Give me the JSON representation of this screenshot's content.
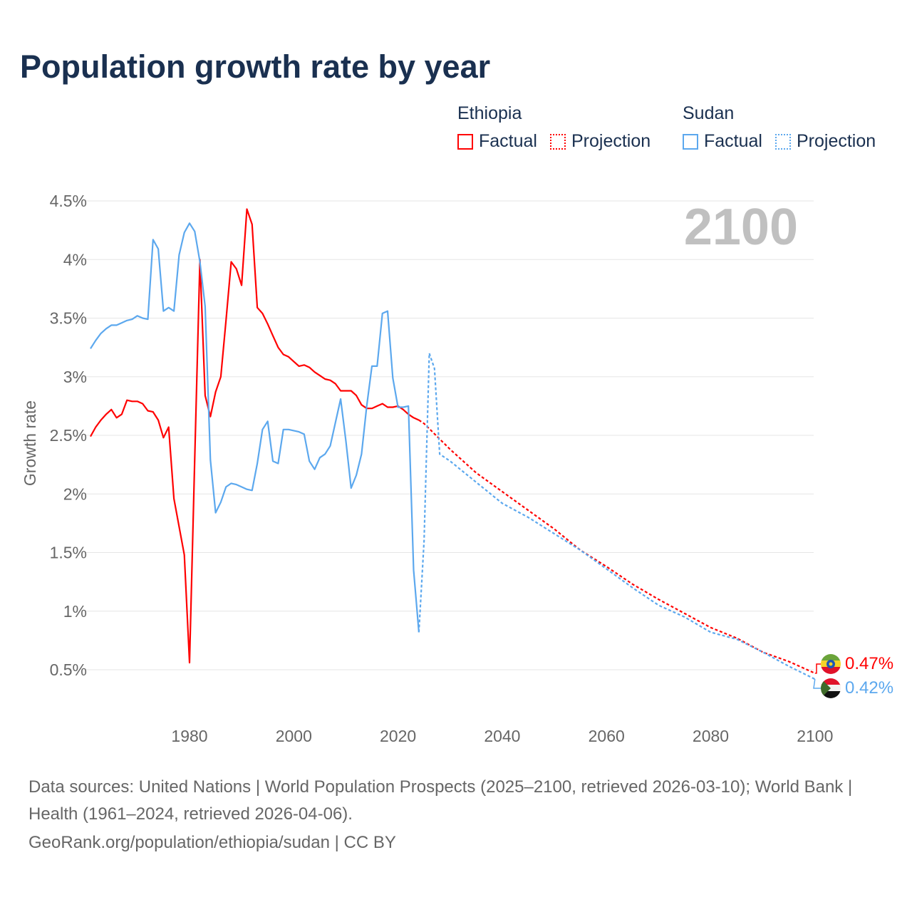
{
  "title": "Population growth rate by year",
  "legend": {
    "groups": [
      {
        "name": "Ethiopia",
        "factual": "Factual",
        "projection": "Projection",
        "color": "#ff0000"
      },
      {
        "name": "Sudan",
        "factual": "Factual",
        "projection": "Projection",
        "color": "#5ca8ee"
      }
    ]
  },
  "footer": {
    "sources": "Data sources: United Nations | World Population Prospects (2025–2100, retrieved 2026-03-10); World Bank | Health (1961–2024, retrieved 2026-04-06).",
    "credit": "GeoRank.org/population/ethiopia/sudan | CC BY"
  },
  "chart_data": {
    "type": "line",
    "title": "Population growth rate by year",
    "xlabel": "",
    "ylabel": "Growth rate",
    "year_label": "2100",
    "xlim": [
      1961,
      2100
    ],
    "ylim": [
      0.5,
      4.5
    ],
    "x_ticks": [
      "1980",
      "2000",
      "2020",
      "2040",
      "2060",
      "2080",
      "2100"
    ],
    "y_ticks": [
      "0.5%",
      "1%",
      "1.5%",
      "2%",
      "2.5%",
      "3%",
      "3.5%",
      "4%",
      "4.5%"
    ],
    "grid": true,
    "series": [
      {
        "name": "Ethiopia",
        "color": "#ff0000",
        "end_label": "0.47%",
        "factual_start": 1961,
        "factual": [
          2.49,
          2.57,
          2.63,
          2.68,
          2.72,
          2.65,
          2.68,
          2.8,
          2.79,
          2.79,
          2.77,
          2.71,
          2.7,
          2.63,
          2.48,
          2.57,
          1.96,
          1.72,
          1.48,
          0.56,
          2.3,
          4.0,
          2.84,
          2.66,
          2.87,
          3.0,
          3.48,
          3.98,
          3.92,
          3.78,
          4.43,
          4.3,
          3.59,
          3.54,
          3.45,
          3.35,
          3.25,
          3.19,
          3.17,
          3.13,
          3.09,
          3.1,
          3.08,
          3.04,
          3.01,
          2.98,
          2.97,
          2.94,
          2.88,
          2.88,
          2.88,
          2.84,
          2.76,
          2.73,
          2.73,
          2.75,
          2.77,
          2.74,
          2.74,
          2.75,
          2.72,
          2.68,
          2.65,
          2.63
        ],
        "projection_years": [
          2024,
          2025,
          2030,
          2035,
          2040,
          2045,
          2050,
          2055,
          2060,
          2065,
          2070,
          2075,
          2080,
          2085,
          2090,
          2095,
          2100
        ],
        "projection": [
          2.63,
          2.6,
          2.38,
          2.18,
          2.02,
          1.86,
          1.7,
          1.52,
          1.38,
          1.23,
          1.1,
          0.98,
          0.86,
          0.77,
          0.65,
          0.57,
          0.47
        ]
      },
      {
        "name": "Sudan",
        "color": "#5ca8ee",
        "end_label": "0.42%",
        "factual_start": 1961,
        "factual": [
          3.24,
          3.31,
          3.37,
          3.41,
          3.44,
          3.44,
          3.46,
          3.48,
          3.49,
          3.52,
          3.5,
          3.49,
          4.17,
          4.09,
          3.56,
          3.59,
          3.56,
          4.04,
          4.23,
          4.31,
          4.24,
          3.98,
          3.6,
          2.29,
          1.84,
          1.93,
          2.06,
          2.09,
          2.08,
          2.06,
          2.04,
          2.03,
          2.26,
          2.55,
          2.62,
          2.28,
          2.26,
          2.55,
          2.55,
          2.54,
          2.53,
          2.51,
          2.28,
          2.21,
          2.31,
          2.34,
          2.41,
          2.61,
          2.81,
          2.45,
          2.05,
          2.16,
          2.34,
          2.75,
          3.09,
          3.09,
          3.54,
          3.56,
          2.99,
          2.74,
          2.74,
          2.75,
          1.35,
          0.82
        ],
        "projection_years": [
          2024,
          2025,
          2026,
          2027,
          2028,
          2030,
          2035,
          2040,
          2045,
          2050,
          2055,
          2060,
          2065,
          2070,
          2075,
          2080,
          2085,
          2090,
          2095,
          2100
        ],
        "projection": [
          0.82,
          1.6,
          3.2,
          3.07,
          2.34,
          2.28,
          2.1,
          1.92,
          1.8,
          1.66,
          1.52,
          1.36,
          1.2,
          1.05,
          0.95,
          0.82,
          0.76,
          0.65,
          0.53,
          0.42
        ]
      }
    ]
  }
}
